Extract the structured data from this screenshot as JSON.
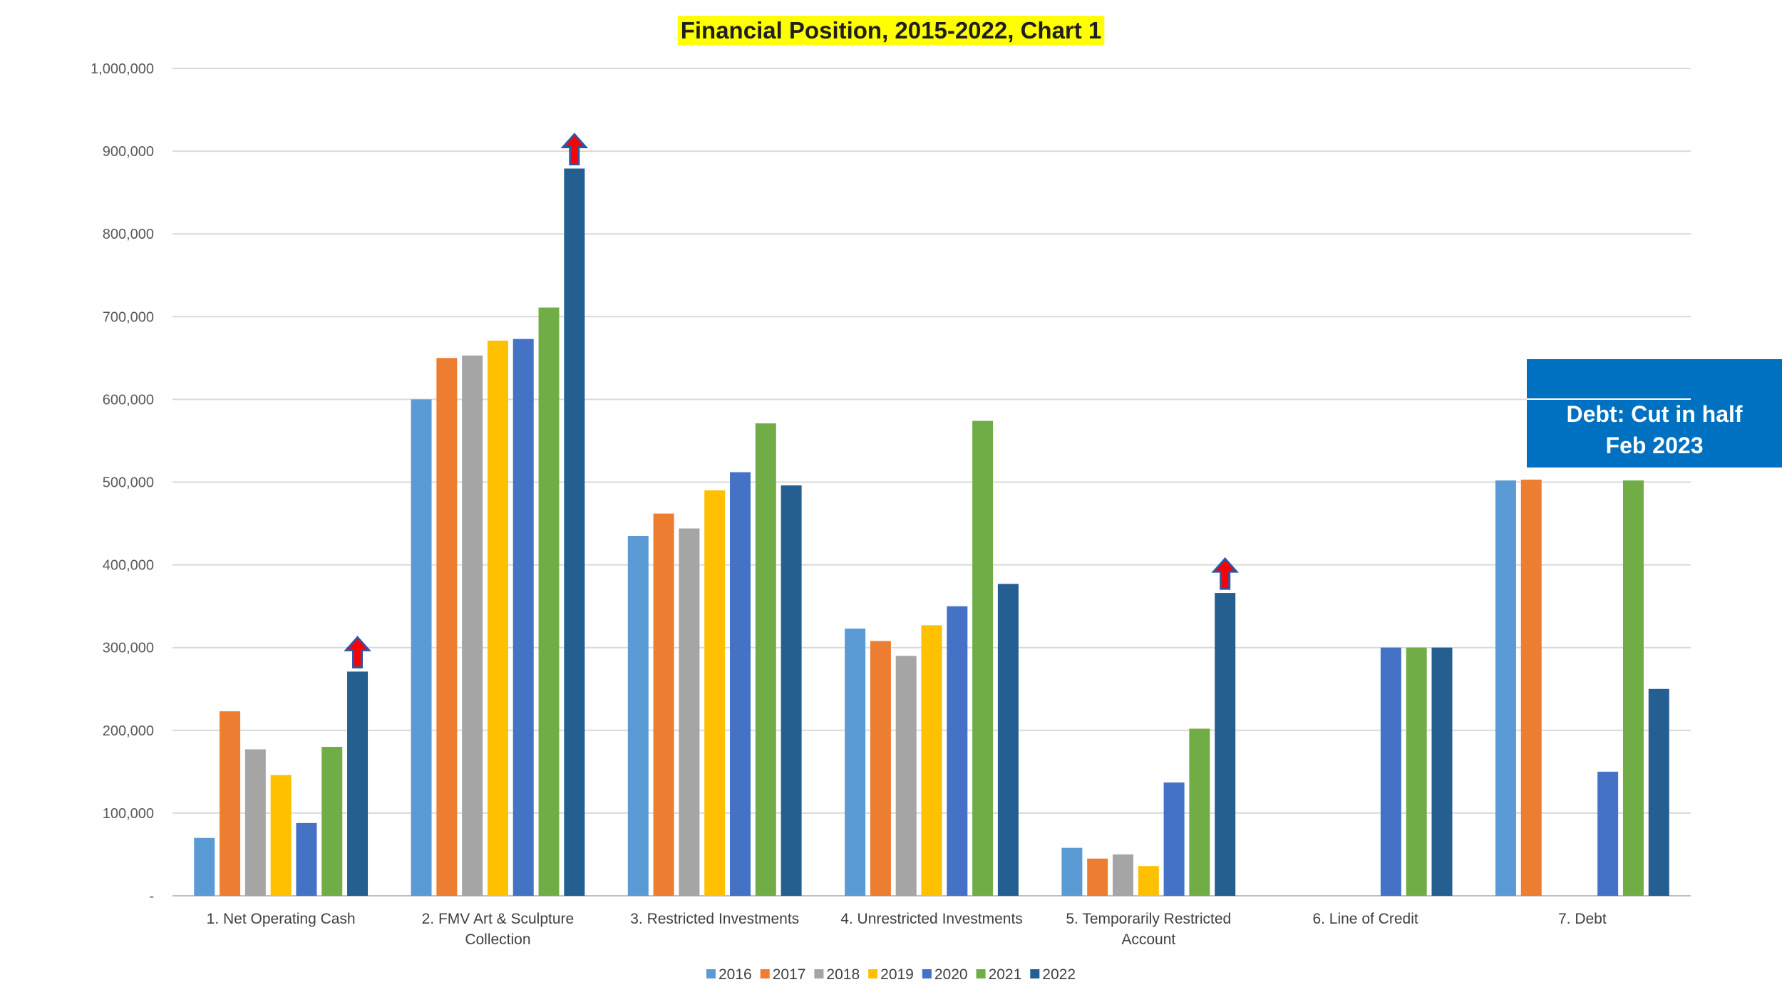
{
  "chart_data": {
    "type": "bar",
    "title": "Financial Position, 2015-2022, Chart 1",
    "xlabel": "",
    "ylabel": "",
    "ylim": [
      0,
      1000000
    ],
    "y_ticks": [
      0,
      100000,
      200000,
      300000,
      400000,
      500000,
      600000,
      700000,
      800000,
      900000,
      1000000
    ],
    "y_tick_labels": [
      "-",
      "100,000",
      "200,000",
      "300,000",
      "400,000",
      "500,000",
      "600,000",
      "700,000",
      "800,000",
      "900,000",
      "1,000,000"
    ],
    "grid": true,
    "legend_position": "bottom",
    "categories": [
      [
        "1. Net Operating Cash"
      ],
      [
        "2. FMV Art & Sculpture",
        "Collection"
      ],
      [
        "3. Restricted Investments"
      ],
      [
        "4. Unrestricted Investments"
      ],
      [
        "5. Temporarily Restricted",
        "Account"
      ],
      [
        "6. Line of Credit"
      ],
      [
        "7. Debt"
      ]
    ],
    "series": [
      {
        "name": "2016",
        "color": "#5b9bd5",
        "values": [
          70000,
          600000,
          435000,
          323000,
          58000,
          0,
          502000
        ]
      },
      {
        "name": "2017",
        "color": "#ed7d31",
        "values": [
          223000,
          650000,
          462000,
          308000,
          45000,
          0,
          503000
        ]
      },
      {
        "name": "2018",
        "color": "#a5a5a5",
        "values": [
          177000,
          653000,
          444000,
          290000,
          50000,
          0,
          0
        ]
      },
      {
        "name": "2019",
        "color": "#ffc000",
        "values": [
          146000,
          671000,
          490000,
          327000,
          36000,
          0,
          0
        ]
      },
      {
        "name": "2020",
        "color": "#4472c4",
        "values": [
          88000,
          673000,
          512000,
          350000,
          137000,
          300000,
          150000
        ]
      },
      {
        "name": "2021",
        "color": "#70ad47",
        "values": [
          180000,
          711000,
          571000,
          574000,
          202000,
          300000,
          502000
        ]
      },
      {
        "name": "2022",
        "color": "#255e91",
        "values": [
          271000,
          879000,
          496000,
          377000,
          366000,
          300000,
          250000
        ]
      }
    ],
    "annotations": {
      "up_arrows_on": {
        "series": "2022",
        "categories": [
          0,
          1,
          4
        ]
      },
      "callout": {
        "lines": [
          "Debt: Cut in half",
          "Feb 2023"
        ],
        "color": "#0070c0"
      }
    },
    "title_highlight_color": "#ffff00"
  }
}
